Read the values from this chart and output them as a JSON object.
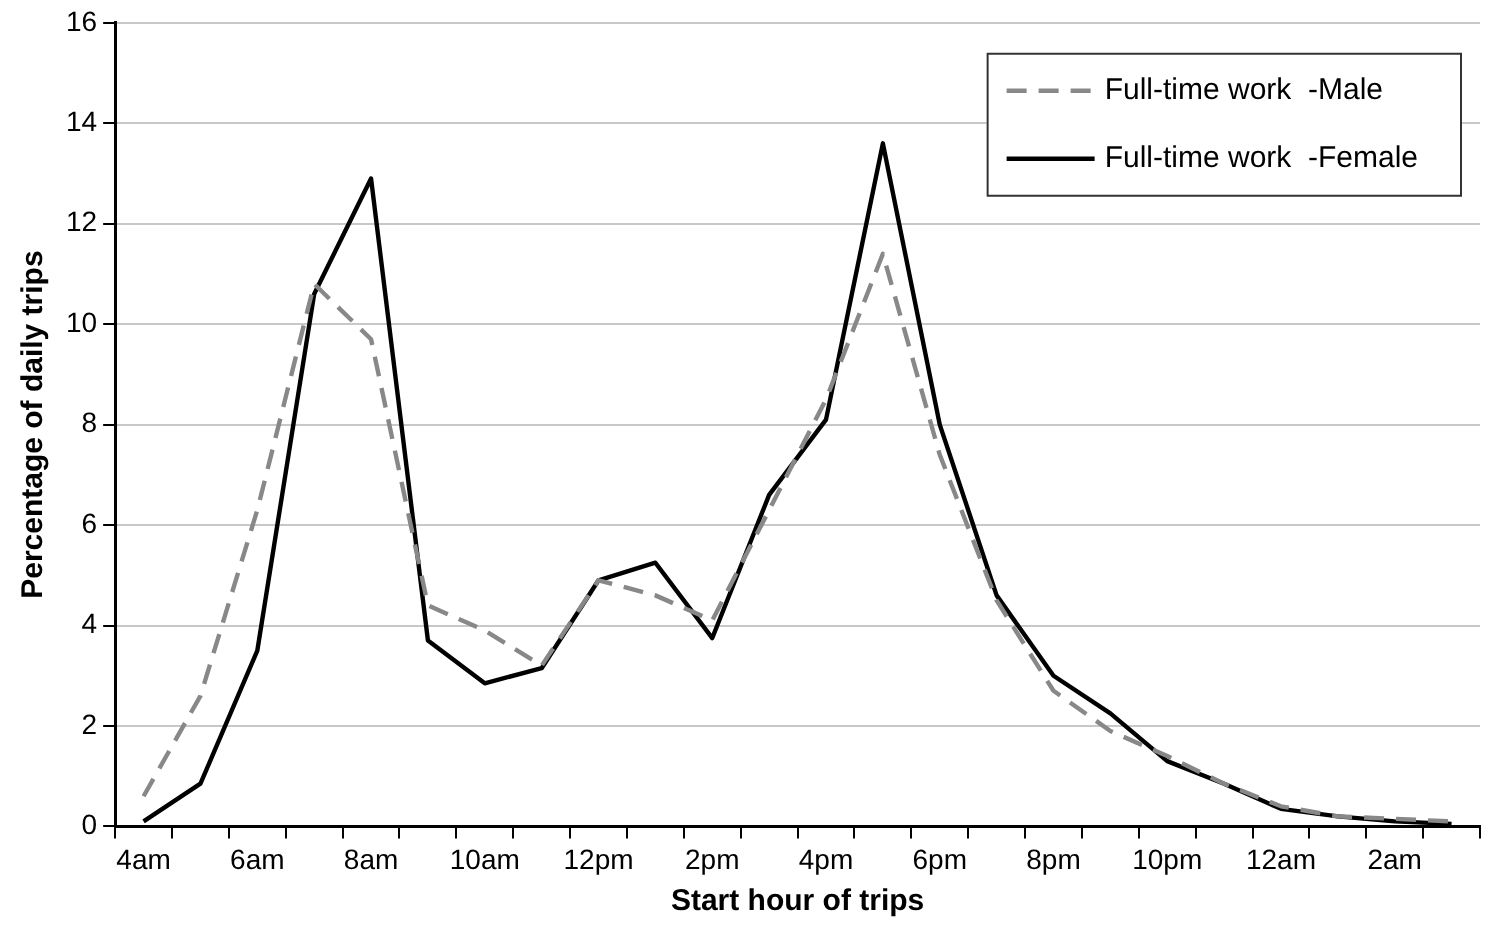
{
  "chart_data": {
    "type": "line",
    "xlabel": "Start hour of trips",
    "ylabel": "Percentage of daily trips",
    "categories": [
      "4am",
      null,
      "6am",
      null,
      "8am",
      null,
      "10am",
      null,
      "12pm",
      null,
      "2pm",
      null,
      "4pm",
      null,
      "6pm",
      null,
      "8pm",
      null,
      "10pm",
      null,
      "12am",
      null,
      "2am",
      null
    ],
    "series": [
      {
        "name": "Full-time work  -Male",
        "color": "#888888",
        "line_style": "dashed",
        "values": [
          0.6,
          2.6,
          6.3,
          10.8,
          9.7,
          4.4,
          3.9,
          3.2,
          4.9,
          4.6,
          4.1,
          6.3,
          8.5,
          11.4,
          7.4,
          4.5,
          2.7,
          1.9,
          1.4,
          0.85,
          0.4,
          0.2,
          0.15,
          0.1
        ]
      },
      {
        "name": "Full-time work  -Female",
        "color": "#000000",
        "line_style": "solid",
        "values": [
          0.1,
          0.85,
          3.5,
          10.6,
          12.9,
          3.7,
          2.85,
          3.15,
          4.9,
          5.25,
          3.75,
          6.6,
          8.1,
          13.6,
          8.0,
          4.6,
          3.0,
          2.25,
          1.3,
          0.85,
          0.35,
          0.2,
          0.1,
          0.05
        ]
      }
    ],
    "ylim": [
      0,
      16
    ],
    "yticks": [
      0,
      2,
      4,
      6,
      8,
      10,
      12,
      14,
      16
    ],
    "grid": "y",
    "legend": "top right",
    "marker": "none"
  }
}
